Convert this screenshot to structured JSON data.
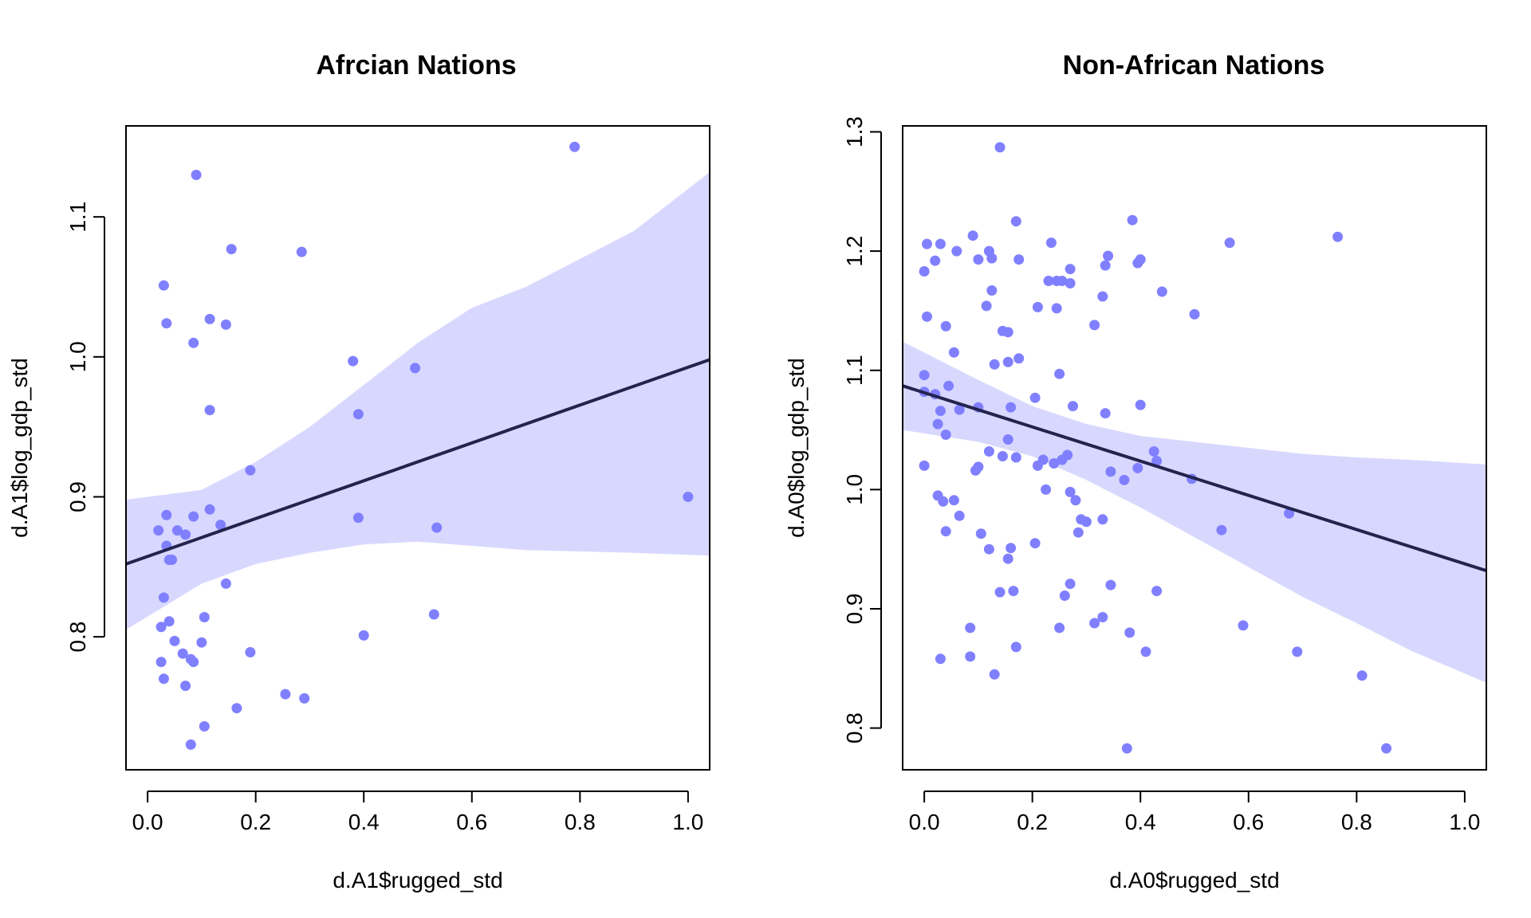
{
  "chart_data": [
    {
      "type": "scatter",
      "title": "Afrcian Nations",
      "xlabel": "d.A1$rugged_std",
      "ylabel": "d.A1$log_gdp_std",
      "xlim": [
        -0.04,
        1.04
      ],
      "ylim": [
        0.705,
        1.165
      ],
      "xticks": [
        "0.0",
        "0.2",
        "0.4",
        "0.6",
        "0.8",
        "1.0"
      ],
      "yticks": [
        "0.8",
        "0.9",
        "1.0",
        "1.1"
      ],
      "colors": {
        "points": "#8080ff",
        "band": "#d8d8ff",
        "line": "#23234e"
      },
      "points": {
        "x": [
          0.79,
          0.09,
          0.03,
          0.035,
          0.115,
          0.145,
          0.155,
          0.285,
          0.085,
          0.115,
          0.38,
          0.495,
          0.39,
          0.19,
          1.0,
          0.115,
          0.035,
          0.085,
          0.135,
          0.02,
          0.055,
          0.07,
          0.035,
          0.04,
          0.045,
          0.39,
          0.535,
          0.145,
          0.03,
          0.105,
          0.04,
          0.025,
          0.05,
          0.1,
          0.065,
          0.08,
          0.085,
          0.19,
          0.025,
          0.4,
          0.53,
          0.03,
          0.07,
          0.255,
          0.29,
          0.165,
          0.105,
          0.08
        ],
        "y": [
          1.15,
          1.13,
          1.051,
          1.024,
          1.027,
          1.023,
          1.077,
          1.075,
          1.01,
          0.962,
          0.997,
          0.992,
          0.959,
          0.919,
          0.9,
          0.891,
          0.887,
          0.886,
          0.88,
          0.876,
          0.876,
          0.873,
          0.865,
          0.855,
          0.855,
          0.885,
          0.878,
          0.838,
          0.828,
          0.814,
          0.811,
          0.807,
          0.797,
          0.796,
          0.788,
          0.784,
          0.782,
          0.789,
          0.782,
          0.801,
          0.816,
          0.77,
          0.765,
          0.759,
          0.756,
          0.749,
          0.736,
          0.723
        ]
      },
      "fit_line": {
        "x": [
          -0.04,
          1.04
        ],
        "y": [
          0.852,
          0.998
        ]
      },
      "interval": {
        "x": [
          -0.04,
          0.1,
          0.2,
          0.3,
          0.4,
          0.5,
          0.6,
          0.7,
          0.8,
          0.9,
          1.04
        ],
        "lower": [
          0.805,
          0.838,
          0.852,
          0.86,
          0.866,
          0.868,
          0.865,
          0.862,
          0.861,
          0.86,
          0.858
        ],
        "upper": [
          0.898,
          0.905,
          0.925,
          0.95,
          0.98,
          1.01,
          1.035,
          1.05,
          1.07,
          1.09,
          1.132
        ]
      }
    },
    {
      "type": "scatter",
      "title": "Non-African Nations",
      "xlabel": "d.A0$rugged_std",
      "ylabel": "d.A0$log_gdp_std",
      "xlim": [
        -0.04,
        1.04
      ],
      "ylim": [
        0.765,
        1.305
      ],
      "xticks": [
        "0.0",
        "0.2",
        "0.4",
        "0.6",
        "0.8",
        "1.0"
      ],
      "yticks": [
        "0.8",
        "0.9",
        "1.0",
        "1.1",
        "1.2",
        "1.3"
      ],
      "colors": {
        "points": "#8080ff",
        "band": "#d8d8ff",
        "line": "#23234e"
      },
      "points": {
        "x": [
          0.14,
          0.17,
          0.385,
          0.005,
          0.03,
          0.09,
          0.12,
          0.235,
          0.565,
          0.765,
          0.02,
          0.06,
          0.1,
          0.0,
          0.125,
          0.175,
          0.245,
          0.27,
          0.34,
          0.4,
          0.395,
          0.335,
          0.44,
          0.33,
          0.125,
          0.23,
          0.255,
          0.27,
          0.21,
          0.245,
          0.5,
          0.115,
          0.04,
          0.005,
          0.145,
          0.155,
          0.315,
          0.055,
          0.175,
          0.13,
          0.155,
          0.25,
          0.045,
          0.0,
          0.0,
          0.02,
          0.205,
          0.1,
          0.065,
          0.03,
          0.16,
          0.275,
          0.4,
          0.335,
          0.04,
          0.025,
          0.155,
          0.21,
          0.24,
          0.265,
          0.22,
          0.255,
          0.425,
          0.43,
          0.0,
          0.12,
          0.145,
          0.17,
          0.395,
          0.345,
          0.37,
          0.495,
          0.1,
          0.095,
          0.025,
          0.055,
          0.035,
          0.065,
          0.105,
          0.04,
          0.225,
          0.27,
          0.28,
          0.29,
          0.3,
          0.33,
          0.675,
          0.55,
          0.12,
          0.16,
          0.205,
          0.285,
          0.155,
          0.26,
          0.27,
          0.345,
          0.14,
          0.165,
          0.43,
          0.315,
          0.33,
          0.085,
          0.25,
          0.38,
          0.59,
          0.41,
          0.69,
          0.03,
          0.085,
          0.17,
          0.13,
          0.81,
          0.375,
          0.855
        ],
        "y": [
          1.287,
          1.225,
          1.226,
          1.206,
          1.206,
          1.213,
          1.2,
          1.207,
          1.207,
          1.212,
          1.192,
          1.2,
          1.193,
          1.183,
          1.194,
          1.193,
          1.175,
          1.185,
          1.196,
          1.193,
          1.19,
          1.188,
          1.166,
          1.162,
          1.167,
          1.175,
          1.175,
          1.173,
          1.153,
          1.152,
          1.147,
          1.154,
          1.137,
          1.145,
          1.133,
          1.132,
          1.138,
          1.115,
          1.11,
          1.105,
          1.107,
          1.097,
          1.087,
          1.096,
          1.082,
          1.08,
          1.077,
          1.069,
          1.067,
          1.066,
          1.069,
          1.07,
          1.071,
          1.064,
          1.046,
          1.055,
          1.042,
          1.02,
          1.022,
          1.029,
          1.025,
          1.025,
          1.032,
          1.024,
          1.02,
          1.032,
          1.028,
          1.027,
          1.018,
          1.015,
          1.008,
          1.009,
          1.019,
          1.016,
          0.995,
          0.991,
          0.99,
          0.978,
          0.963,
          0.965,
          1.0,
          0.998,
          0.991,
          0.975,
          0.973,
          0.975,
          0.98,
          0.966,
          0.95,
          0.951,
          0.955,
          0.964,
          0.942,
          0.911,
          0.921,
          0.92,
          0.914,
          0.915,
          0.915,
          0.888,
          0.893,
          0.884,
          0.884,
          0.88,
          0.886,
          0.864,
          0.864,
          0.858,
          0.86,
          0.868,
          0.845,
          0.844,
          0.783,
          0.783
        ]
      },
      "fit_line": {
        "x": [
          -0.04,
          1.04
        ],
        "y": [
          1.087,
          0.932
        ]
      },
      "interval": {
        "x": [
          -0.04,
          0.1,
          0.2,
          0.3,
          0.4,
          0.5,
          0.6,
          0.7,
          0.8,
          0.9,
          1.04
        ],
        "lower": [
          1.05,
          1.04,
          1.028,
          1.008,
          0.985,
          0.96,
          0.935,
          0.91,
          0.888,
          0.865,
          0.838
        ],
        "upper": [
          1.124,
          1.092,
          1.07,
          1.055,
          1.045,
          1.04,
          1.035,
          1.03,
          1.027,
          1.025,
          1.021
        ]
      }
    }
  ]
}
